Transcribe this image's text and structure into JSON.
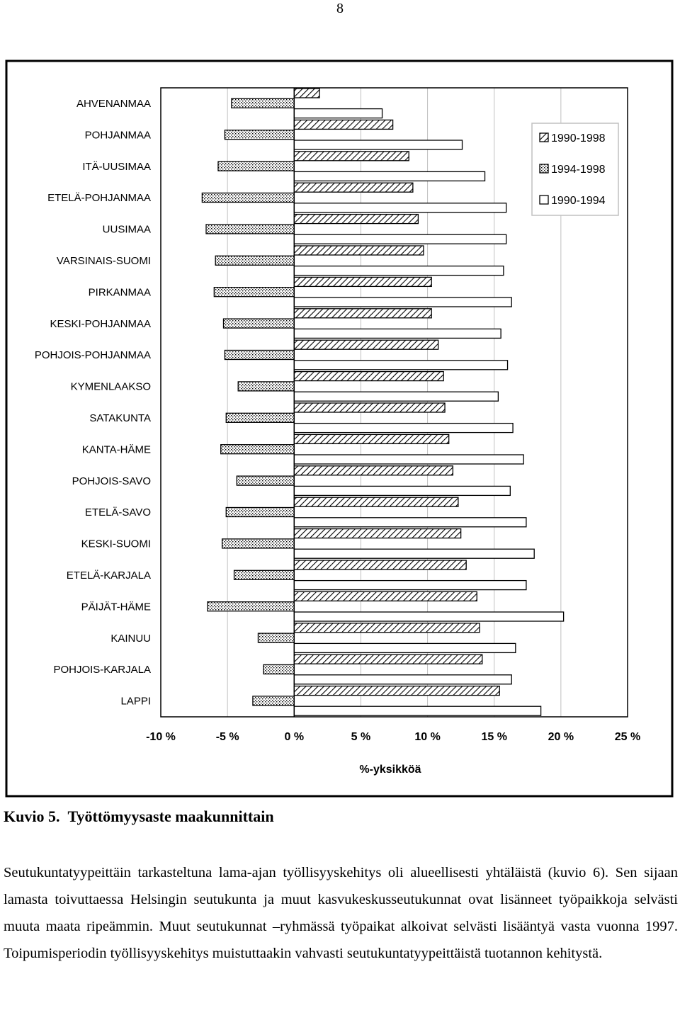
{
  "page_number": "8",
  "caption": {
    "label": "Kuvio 5.",
    "title": "Työttömyysaste maakunnittain"
  },
  "body_text": "Seutukuntatyypeittäin tarkasteltuna lama-ajan työllisyyskehitys oli alueellisesti yhtäläistä (kuvio 6). Sen sijaan lamasta toivuttaessa Helsingin seutukunta ja muut kasvukeskusseutukunnat ovat lisänneet työpaikkoja selvästi muuta maata ripeämmin. Muut seutukunnat –ryhmässä työpaikat alkoivat selvästi lisääntyä vasta vuonna 1997. Toipumisperiodin työllisyyskehitys muistuttaakin vahvasti seutukuntatyypeittäistä tuotannon kehitystä.",
  "chart_data": {
    "type": "bar",
    "orientation": "horizontal",
    "categories": [
      "AHVENANMAA",
      "POHJANMAA",
      "ITÄ-UUSIMAA",
      "ETELÄ-POHJANMAA",
      "UUSIMAA",
      "VARSINAIS-SUOMI",
      "PIRKANMAA",
      "KESKI-POHJANMAA",
      "POHJOIS-POHJANMAA",
      "KYMENLAAKSO",
      "SATAKUNTA",
      "KANTA-HÄME",
      "POHJOIS-SAVO",
      "ETELÄ-SAVO",
      "KESKI-SUOMI",
      "ETELÄ-KARJALA",
      "PÄIJÄT-HÄME",
      "KAINUU",
      "POHJOIS-KARJALA",
      "LAPPI"
    ],
    "series": [
      {
        "name": "1990-1998",
        "pattern": "diagonal-hatch",
        "values": [
          1.9,
          7.4,
          8.6,
          8.9,
          9.3,
          9.7,
          10.3,
          10.3,
          10.8,
          11.2,
          11.3,
          11.6,
          11.9,
          12.3,
          12.5,
          12.9,
          13.7,
          13.9,
          14.1,
          15.4
        ]
      },
      {
        "name": "1994-1998",
        "pattern": "dotted",
        "values": [
          -4.7,
          -5.2,
          -5.7,
          -6.9,
          -6.6,
          -5.9,
          -6.0,
          -5.3,
          -5.2,
          -4.2,
          -5.1,
          -5.5,
          -4.3,
          -5.1,
          -5.4,
          -4.5,
          -6.5,
          -2.7,
          -2.3,
          -3.1
        ]
      },
      {
        "name": "1990-1994",
        "pattern": "white",
        "values": [
          6.6,
          12.6,
          14.3,
          15.9,
          15.9,
          15.7,
          16.3,
          15.5,
          16.0,
          15.3,
          16.4,
          17.2,
          16.2,
          17.4,
          18.0,
          17.4,
          20.2,
          16.6,
          16.3,
          18.5
        ]
      }
    ],
    "x_ticks": [
      "-10 %",
      "-5 %",
      "0 %",
      "5 %",
      "10 %",
      "15 %",
      "20 %",
      "25 %"
    ],
    "x_tick_values": [
      -10,
      -5,
      0,
      5,
      10,
      15,
      20,
      25
    ],
    "xlim": [
      -10,
      25
    ],
    "xlabel": "%-yksikköä",
    "grid": "vertical",
    "legend_position": "top-right",
    "colors": {
      "bar_stroke": "#000000",
      "fill": "#ffffff",
      "grid": "#c0c0c0"
    }
  }
}
